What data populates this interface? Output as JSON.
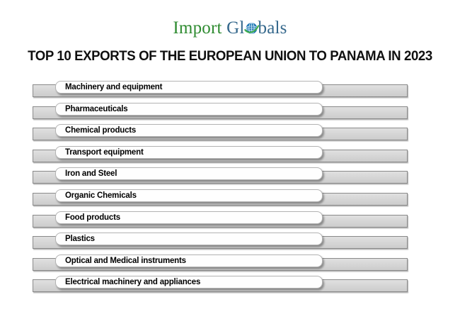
{
  "logo": {
    "text_import": "Import",
    "text_gl": "Gl",
    "text_bals": "bals",
    "icon": "globe-icon",
    "color_import": "#2e8b30",
    "color_globals": "#35688c",
    "globe_blue": "#2379b5",
    "globe_swoosh_green": "#3fae49"
  },
  "title": "TOP 10 EXPORTS OF THE EUROPEAN UNION TO PANAMA IN 2023",
  "chart_data": {
    "type": "bar",
    "orientation": "horizontal",
    "title": "TOP 10 EXPORTS OF THE EUROPEAN UNION TO PANAMA IN 2023",
    "categories": [
      "Machinery and equipment",
      "Pharmaceuticals",
      "Chemical products",
      "Transport equipment",
      "Iron and Steel",
      "Organic Chemicals",
      "Food products",
      "Plastics",
      "Optical and Medical instruments",
      "Electrical machinery and appliances"
    ],
    "values": [
      528,
      528,
      528,
      528,
      528,
      528,
      528,
      528,
      528,
      528
    ],
    "value_axis_visible": false,
    "values_unit": "rendered bar length in px (no numeric values shown in image)",
    "grid": false,
    "legend": false,
    "bar_color": "#d6d6d6",
    "bar_border_color": "#8a8a8a",
    "label_box_color": "#ffffff"
  }
}
